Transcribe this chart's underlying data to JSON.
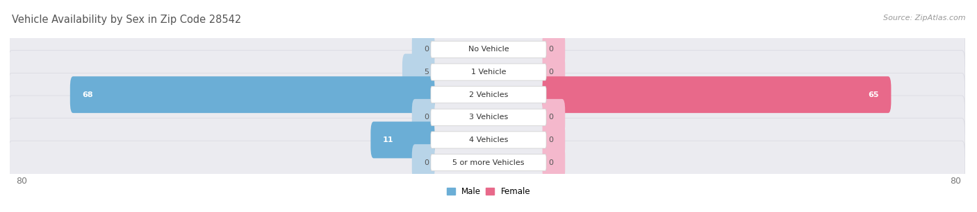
{
  "title": "Vehicle Availability by Sex in Zip Code 28542",
  "source": "Source: ZipAtlas.com",
  "categories": [
    "No Vehicle",
    "1 Vehicle",
    "2 Vehicles",
    "3 Vehicles",
    "4 Vehicles",
    "5 or more Vehicles"
  ],
  "male_values": [
    0,
    5,
    68,
    0,
    11,
    0
  ],
  "female_values": [
    0,
    0,
    65,
    0,
    0,
    0
  ],
  "male_color_large": "#6baed6",
  "male_color_small": "#b8d4e8",
  "female_color_large": "#e8698a",
  "female_color_small": "#f4b8cc",
  "row_bg_color": "#ebebf0",
  "row_edge_color": "#d8d8e0",
  "max_value": 80,
  "legend_male": "Male",
  "legend_female": "Female",
  "title_fontsize": 10.5,
  "source_fontsize": 8,
  "label_fontsize": 8,
  "category_fontsize": 8,
  "tick_fontsize": 9,
  "stub_size": 6
}
